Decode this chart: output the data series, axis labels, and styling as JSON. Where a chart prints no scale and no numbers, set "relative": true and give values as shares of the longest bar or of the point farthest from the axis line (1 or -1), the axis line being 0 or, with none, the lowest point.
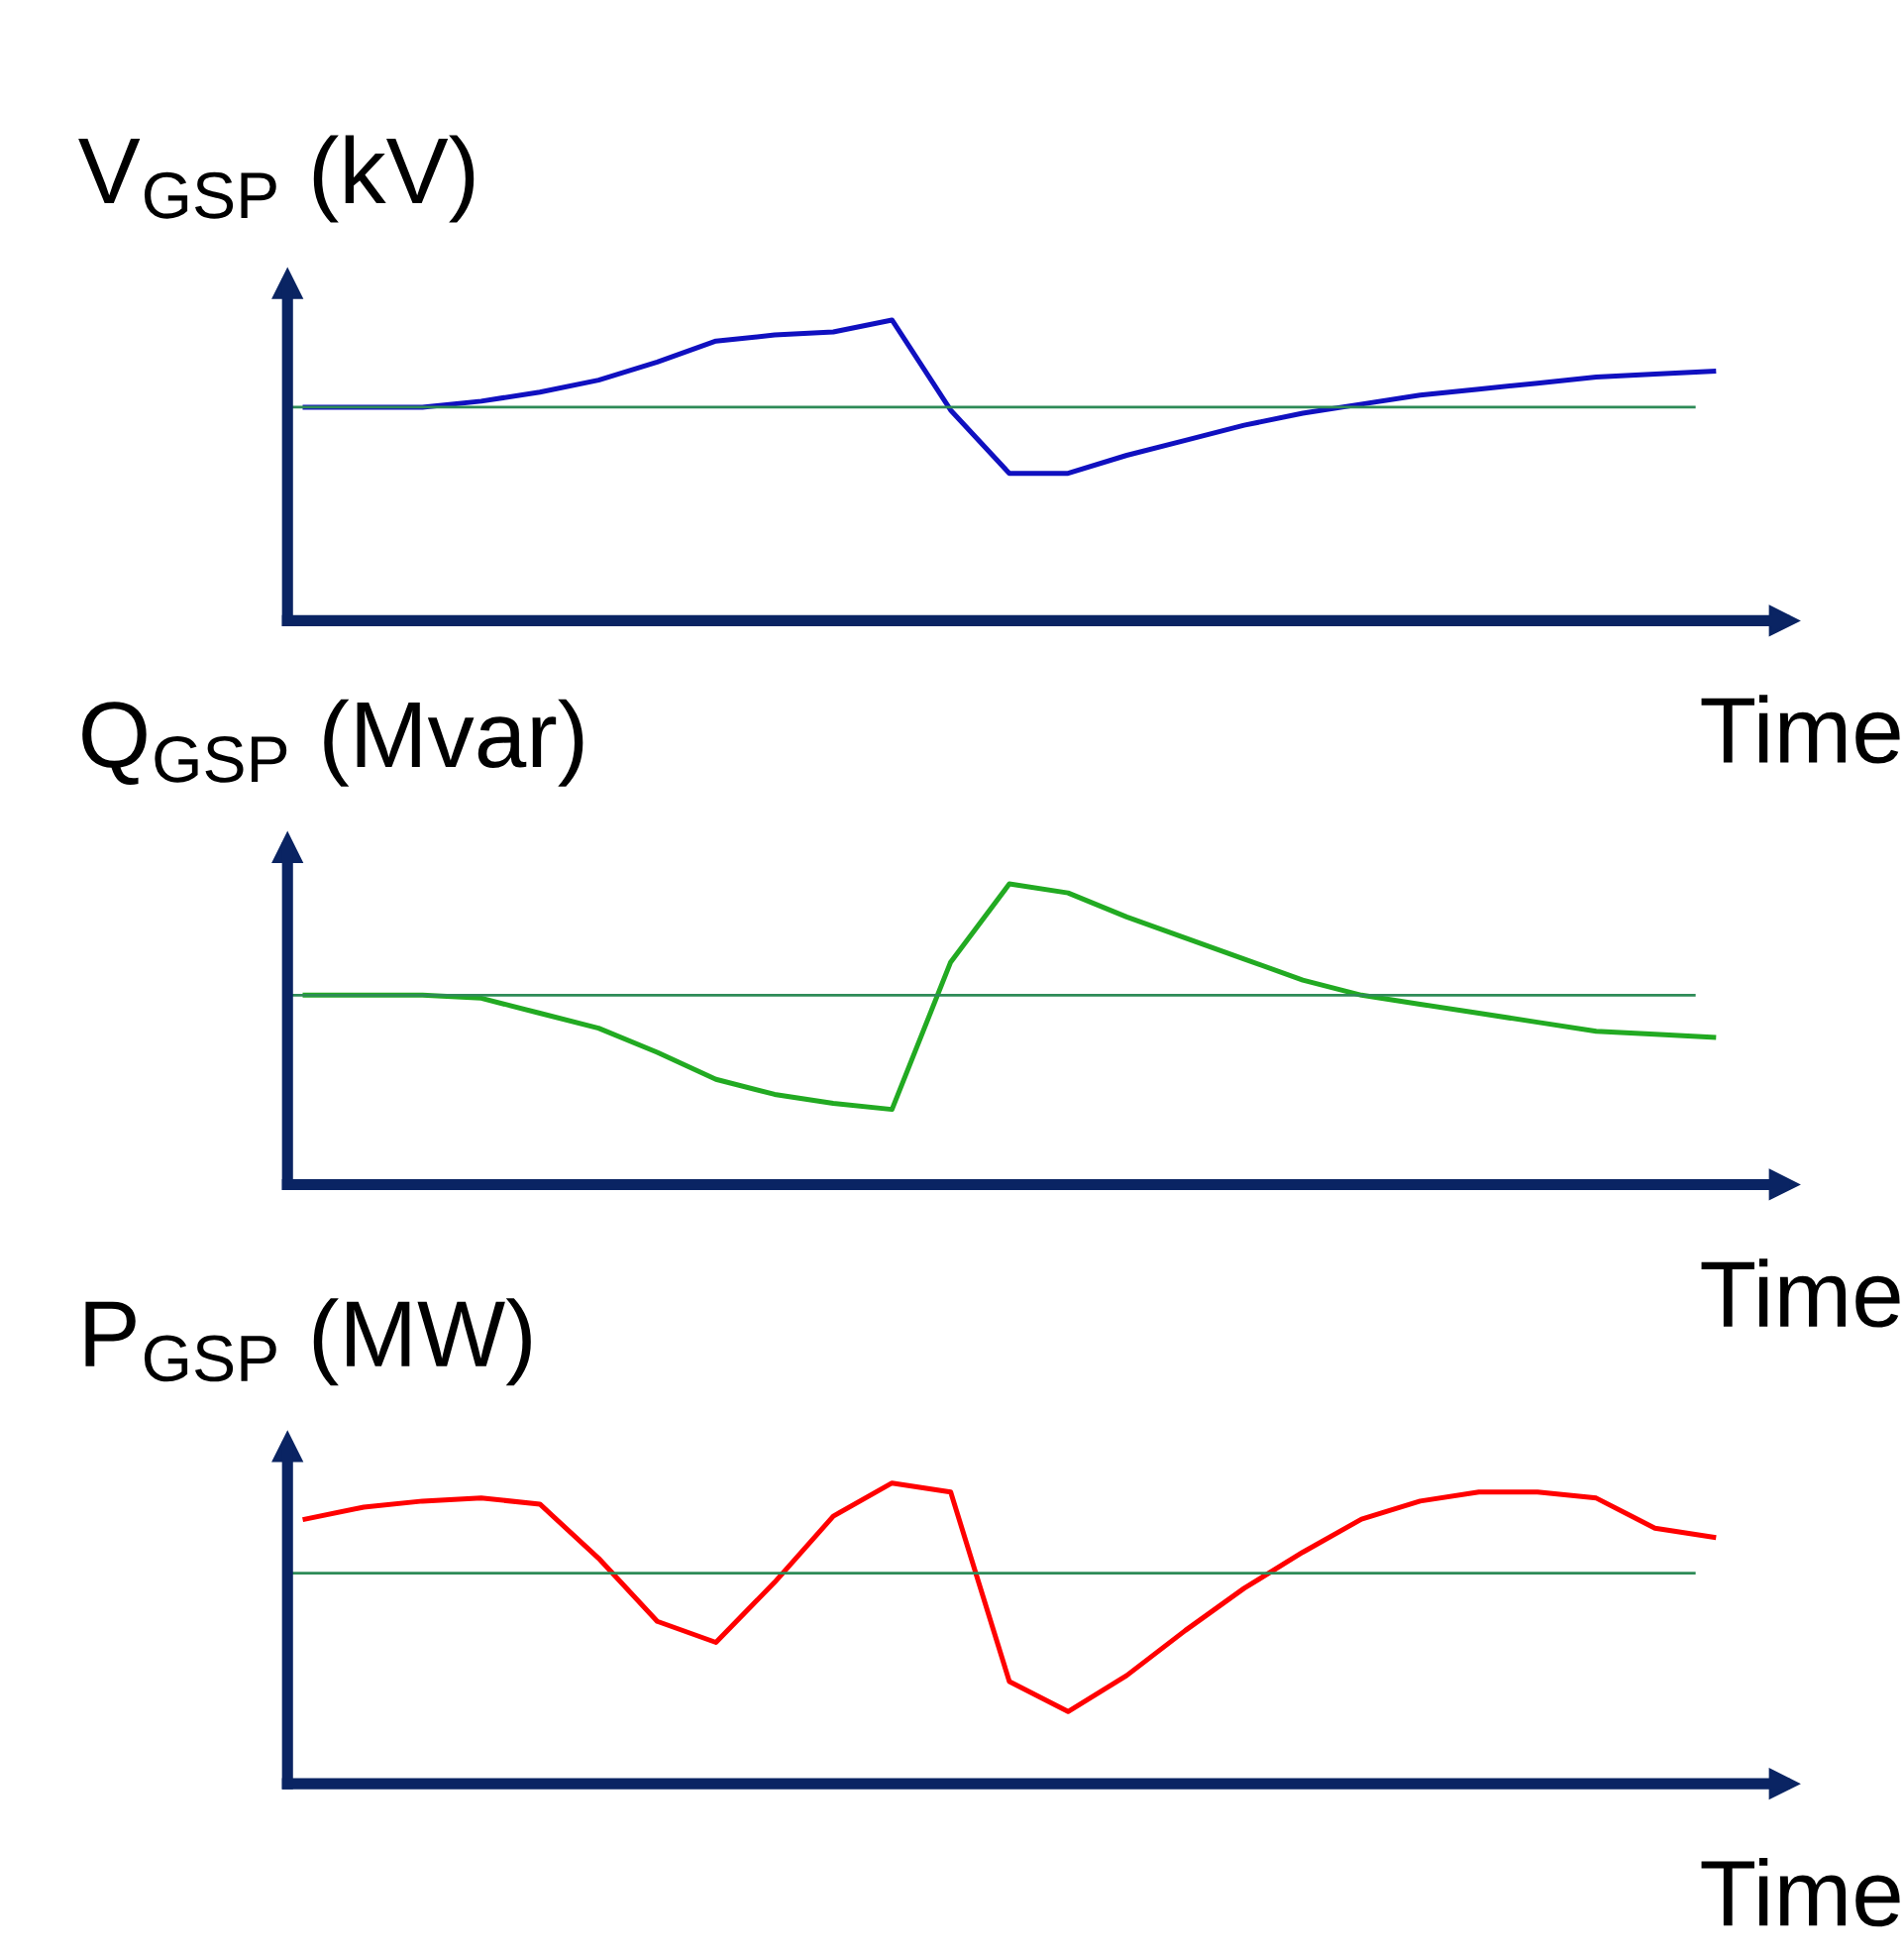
{
  "chart_data": [
    {
      "type": "line",
      "ylabel": "V$_{GSP}$ (kV)",
      "xlabel": "Time",
      "relative": true,
      "categories": [
        null,
        null,
        null,
        null,
        null,
        null,
        null,
        null,
        null,
        null,
        null,
        null,
        null,
        null,
        null,
        null,
        null,
        null,
        null,
        null,
        null,
        null,
        null,
        null,
        null
      ],
      "series": [
        {
          "color": "#1010c0",
          "values": [
            0.71,
            0.71,
            0.71,
            0.73,
            0.76,
            0.8,
            0.86,
            0.93,
            0.95,
            0.96,
            1.0,
            0.7,
            0.49,
            0.49,
            0.55,
            0.6,
            0.65,
            0.69,
            0.72,
            0.75,
            0.77,
            0.79,
            0.81,
            0.82,
            0.83
          ]
        }
      ],
      "ref_lines": [
        {
          "axis": "y",
          "value": 0.71,
          "color": "#2e8b57"
        }
      ]
    },
    {
      "type": "line",
      "ylabel": "Q$_{GSP}$ (Mvar)",
      "xlabel": "Time",
      "relative": true,
      "categories": [
        null,
        null,
        null,
        null,
        null,
        null,
        null,
        null,
        null,
        null,
        null,
        null,
        null,
        null,
        null,
        null,
        null,
        null,
        null,
        null,
        null,
        null,
        null,
        null,
        null
      ],
      "series": [
        {
          "color": "#22aa22",
          "values": [
            0.63,
            0.63,
            0.63,
            0.62,
            0.57,
            0.52,
            0.44,
            0.35,
            0.3,
            0.27,
            0.25,
            0.74,
            1.0,
            0.97,
            0.89,
            0.82,
            0.75,
            0.68,
            0.63,
            0.6,
            0.57,
            0.54,
            0.51,
            0.5,
            0.49
          ]
        }
      ],
      "ref_lines": [
        {
          "axis": "y",
          "value": 0.63,
          "color": "#2e8b57"
        }
      ]
    },
    {
      "type": "line",
      "ylabel": "P$_{GSP}$ (MW)",
      "xlabel": "Time",
      "relative": true,
      "categories": [
        null,
        null,
        null,
        null,
        null,
        null,
        null,
        null,
        null,
        null,
        null,
        null,
        null,
        null,
        null,
        null,
        null,
        null,
        null,
        null,
        null,
        null,
        null,
        null,
        null
      ],
      "series": [
        {
          "color": "#ff0000",
          "values": [
            0.88,
            0.92,
            0.94,
            0.95,
            0.93,
            0.75,
            0.54,
            0.47,
            0.67,
            0.89,
            1.0,
            0.97,
            0.34,
            0.24,
            0.36,
            0.51,
            0.65,
            0.77,
            0.88,
            0.94,
            0.97,
            0.97,
            0.95,
            0.85,
            0.82
          ]
        }
      ],
      "ref_lines": [
        {
          "axis": "y",
          "value": 0.7,
          "color": "#2e8b57"
        }
      ]
    }
  ]
}
